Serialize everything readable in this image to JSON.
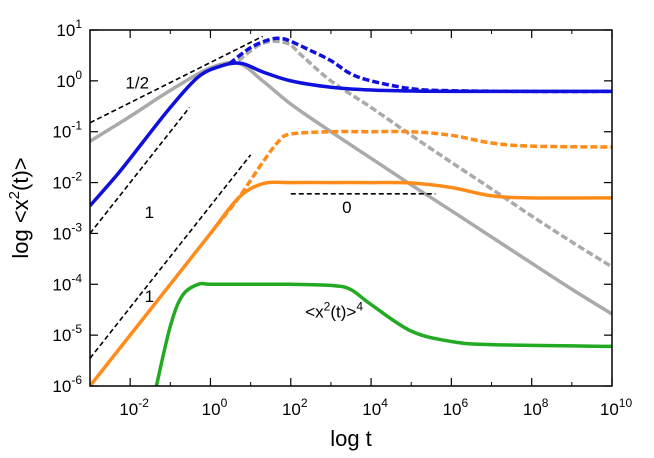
{
  "chart_data": {
    "type": "line",
    "xlabel": "log t",
    "ylabel": "log <x2(t)>",
    "xscale": "log",
    "yscale": "log",
    "xlim": [
      0.001,
      10000000000
    ],
    "ylim": [
      1e-06,
      10
    ],
    "grid": false,
    "legend": "none",
    "x_ticks": [
      {
        "base": "10",
        "exp": "-2",
        "value": 0.01
      },
      {
        "base": "10",
        "exp": "0",
        "value": 1
      },
      {
        "base": "10",
        "exp": "2",
        "value": 100
      },
      {
        "base": "10",
        "exp": "4",
        "value": 10000
      },
      {
        "base": "10",
        "exp": "6",
        "value": 1000000
      },
      {
        "base": "10",
        "exp": "8",
        "value": 100000000
      },
      {
        "base": "10",
        "exp": "10",
        "value": 10000000000
      }
    ],
    "y_ticks": [
      {
        "base": "10",
        "exp": "-6",
        "value": 1e-06
      },
      {
        "base": "10",
        "exp": "-5",
        "value": 1e-05
      },
      {
        "base": "10",
        "exp": "-4",
        "value": 0.0001
      },
      {
        "base": "10",
        "exp": "-3",
        "value": 0.001
      },
      {
        "base": "10",
        "exp": "-2",
        "value": 0.01
      },
      {
        "base": "10",
        "exp": "-1",
        "value": 0.1
      },
      {
        "base": "10",
        "exp": "0",
        "value": 1
      },
      {
        "base": "10",
        "exp": "1",
        "value": 10
      }
    ],
    "series": [
      {
        "color": "#aaaaaa",
        "dash": "solid",
        "points": [
          [
            0.001,
            0.065
          ],
          [
            0.01,
            0.2
          ],
          [
            0.1,
            0.65
          ],
          [
            1,
            1.8
          ],
          [
            5,
            2.2
          ],
          [
            20,
            1.0
          ],
          [
            100,
            0.35
          ],
          [
            1000,
            0.1
          ],
          [
            10000,
            0.03
          ],
          [
            100000,
            0.009
          ],
          [
            1000000,
            0.0028
          ],
          [
            10000000,
            0.00085
          ],
          [
            100000000,
            0.00026
          ],
          [
            1000000000,
            8e-05
          ],
          [
            10000000000,
            2.6e-05
          ]
        ]
      },
      {
        "color": "#aaaaaa",
        "dash": "dashed",
        "points": [
          [
            5,
            2.5
          ],
          [
            20,
            5.5
          ],
          [
            80,
            5.5
          ],
          [
            200,
            3.0
          ],
          [
            1000,
            1.0
          ],
          [
            10000,
            0.3
          ],
          [
            100000,
            0.085
          ],
          [
            1000000,
            0.025
          ],
          [
            10000000,
            0.0075
          ],
          [
            100000000,
            0.0022
          ],
          [
            1000000000,
            0.00068
          ],
          [
            10000000000,
            0.00022
          ]
        ]
      },
      {
        "color": "#1010dd",
        "dash": "solid",
        "points": [
          [
            0.001,
            0.0035
          ],
          [
            0.005,
            0.015
          ],
          [
            0.02,
            0.06
          ],
          [
            0.1,
            0.3
          ],
          [
            0.5,
            1.2
          ],
          [
            2,
            2.0
          ],
          [
            6,
            2.2
          ],
          [
            20,
            1.5
          ],
          [
            100,
            1.0
          ],
          [
            1000,
            0.75
          ],
          [
            10000,
            0.66
          ],
          [
            100000,
            0.63
          ],
          [
            1000000,
            0.62
          ],
          [
            100000000,
            0.62
          ],
          [
            10000000000,
            0.62
          ]
        ]
      },
      {
        "color": "#1010dd",
        "dash": "dashed",
        "points": [
          [
            3,
            2.2
          ],
          [
            10,
            4.5
          ],
          [
            30,
            6.5
          ],
          [
            60,
            6.8
          ],
          [
            100,
            6.0
          ],
          [
            300,
            4.0
          ],
          [
            1000,
            2.5
          ],
          [
            3000,
            1.4
          ],
          [
            10000,
            1.0
          ],
          [
            100000,
            0.7
          ],
          [
            1000000,
            0.64
          ],
          [
            100000000,
            0.62
          ],
          [
            10000000000,
            0.62
          ]
        ]
      },
      {
        "color": "#ff8c1a",
        "dash": "solid",
        "points": [
          [
            0.001,
            1e-06
          ],
          [
            0.01,
            1e-05
          ],
          [
            0.1,
            0.0001
          ],
          [
            1,
            0.001
          ],
          [
            5,
            0.005
          ],
          [
            20,
            0.0095
          ],
          [
            100,
            0.01
          ],
          [
            1000,
            0.01
          ],
          [
            10000,
            0.01
          ],
          [
            100000,
            0.0098
          ],
          [
            1000000,
            0.008
          ],
          [
            10000000,
            0.0055
          ],
          [
            100000000,
            0.005
          ],
          [
            10000000000,
            0.005
          ]
        ]
      },
      {
        "color": "#ff8c1a",
        "dash": "dashed",
        "points": [
          [
            1,
            0.001
          ],
          [
            5,
            0.005
          ],
          [
            20,
            0.025
          ],
          [
            50,
            0.065
          ],
          [
            100,
            0.09
          ],
          [
            1000,
            0.1
          ],
          [
            10000,
            0.1
          ],
          [
            100000,
            0.1
          ],
          [
            1000000,
            0.085
          ],
          [
            10000000,
            0.06
          ],
          [
            100000000,
            0.052
          ],
          [
            10000000000,
            0.05
          ]
        ]
      },
      {
        "color": "#22aa22",
        "dash": "solid",
        "points": [
          [
            0.045,
            1e-06
          ],
          [
            0.1,
            1.5e-05
          ],
          [
            0.2,
            6e-05
          ],
          [
            0.5,
            0.0001
          ],
          [
            1,
            0.0001
          ],
          [
            10,
            0.0001
          ],
          [
            100,
            0.0001
          ],
          [
            1000,
            9.5e-05
          ],
          [
            3000,
            8e-05
          ],
          [
            10000,
            4e-05
          ],
          [
            100000,
            1.2e-05
          ],
          [
            1000000,
            7.5e-06
          ],
          [
            10000000,
            6.5e-06
          ],
          [
            10000000000,
            6e-06
          ]
        ]
      }
    ],
    "guide_lines": [
      {
        "slope_label": "1/2",
        "points": [
          [
            0.001,
            0.15
          ],
          [
            20,
            7.5
          ]
        ]
      },
      {
        "slope_label": "1",
        "points": [
          [
            0.001,
            0.001
          ],
          [
            0.3,
            0.3
          ]
        ]
      },
      {
        "slope_label": "1",
        "points": [
          [
            0.001,
            3.5e-06
          ],
          [
            10,
            0.035
          ]
        ]
      },
      {
        "slope_label": "0",
        "points": [
          [
            100,
            0.006
          ],
          [
            400000,
            0.006
          ]
        ]
      }
    ],
    "annotations": [
      {
        "text": "1/2",
        "x": 0.015,
        "y": 0.7
      },
      {
        "text": "1",
        "x": 0.03,
        "y": 0.002
      },
      {
        "text": "1",
        "x": 0.03,
        "y": 4.5e-05
      },
      {
        "text": "0",
        "x": 2500,
        "y": 0.0025
      },
      {
        "base_text": "<x",
        "exp1": "2",
        "mid_text": "(t)>",
        "exp2": "4",
        "x": 1200,
        "y": 2.2e-05
      }
    ]
  }
}
